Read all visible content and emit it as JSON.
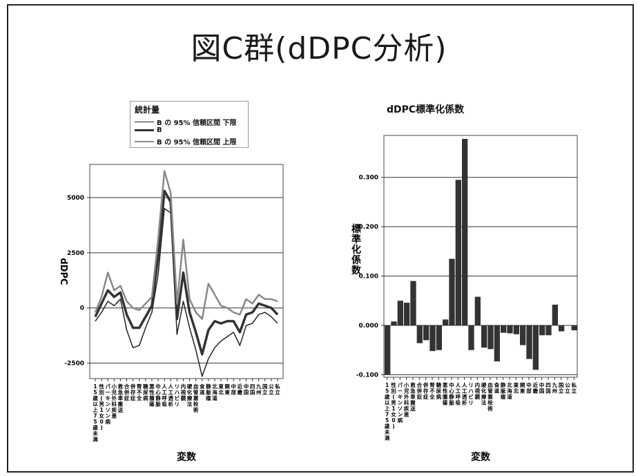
{
  "slide": {
    "title": "図C群(dDPC分析)"
  },
  "chart_data": [
    {
      "type": "line",
      "title": "",
      "xlabel": "変数",
      "ylabel": "dDPC",
      "legend_title": "統計量",
      "legend_position": "top-left",
      "grid": true,
      "ylim": [
        -3200,
        6500
      ],
      "yticks": [
        5000,
        2500,
        0,
        -2500
      ],
      "ytick_labels": [
        "5000",
        "2500",
        "0",
        "-2500"
      ],
      "categories": [
        "15歳以上75歳未満",
        "性別(男1女0)",
        "パーキンソン病",
        "小児外科疾患",
        "救急車搬送",
        "合併症",
        "併存症",
        "腎不全",
        "糖尿病",
        "悪性腫瘍",
        "中心静脈",
        "人工呼吸",
        "人工透析",
        "リハビリ",
        "内視鏡",
        "硬化療法",
        "血管塞栓術",
        "食道",
        "静脈瘤",
        "北海道",
        "東北",
        "関東",
        "中部",
        "近畿",
        "中国",
        "四国",
        "九州",
        "国立",
        "公立",
        "私立"
      ],
      "series": [
        {
          "name": "B の 95% 信頼区間 下限",
          "color": "#222222",
          "values": [
            -600,
            -200,
            300,
            100,
            400,
            -1000,
            -1800,
            -1700,
            -900,
            -200,
            1500,
            4500,
            4300,
            -1200,
            300,
            -900,
            -1900,
            -3100,
            -2300,
            -1800,
            -1500,
            -1300,
            -1100,
            -1700,
            -800,
            -700,
            -300,
            -200,
            -400,
            -700
          ]
        },
        {
          "name": "B",
          "color": "#333333",
          "values": [
            -400,
            200,
            800,
            500,
            700,
            -300,
            -900,
            -900,
            -400,
            100,
            2300,
            5300,
            4800,
            -500,
            1600,
            -200,
            -1100,
            -2100,
            -1000,
            -600,
            -700,
            -600,
            -600,
            -1100,
            -300,
            -200,
            200,
            100,
            0,
            -300
          ]
        },
        {
          "name": "B の 95% 信頼区間 上限",
          "color": "#888888",
          "values": [
            -200,
            500,
            1600,
            800,
            1000,
            300,
            0,
            -100,
            200,
            500,
            3100,
            6200,
            5200,
            200,
            3100,
            400,
            -200,
            -500,
            1100,
            600,
            100,
            0,
            -200,
            -300,
            400,
            200,
            600,
            400,
            400,
            300
          ]
        }
      ]
    },
    {
      "type": "bar",
      "title": "dDPC標準化係数",
      "xlabel": "変数",
      "ylabel": "標準化係数",
      "grid": true,
      "ylim": [
        -0.105,
        0.385
      ],
      "yticks": [
        0.3,
        0.2,
        0.1,
        0.0,
        -0.1
      ],
      "ytick_labels": [
        "0.300",
        "0.200",
        "0.100",
        "0.000",
        "-0.100"
      ],
      "categories": [
        "15歳以上75歳未満",
        "性別(男1女0)",
        "パーキンソン病",
        "小児外科疾患",
        "救急車搬送",
        "合併症",
        "併存症",
        "腎不全",
        "糖尿病",
        "悪性腫瘍",
        "中心静脈",
        "人工呼吸",
        "人工透析",
        "リハビリ",
        "内視鏡",
        "硬化療法",
        "血管塞栓術",
        "食道",
        "静脈瘤",
        "北海道",
        "東北",
        "関東",
        "中部",
        "近畿",
        "中国",
        "四国",
        "九州",
        "国立",
        "公立",
        "私立"
      ],
      "values": [
        -0.1,
        0.008,
        0.05,
        0.046,
        0.09,
        -0.036,
        -0.03,
        -0.052,
        -0.05,
        0.012,
        0.135,
        0.295,
        0.378,
        -0.05,
        0.058,
        -0.045,
        -0.048,
        -0.073,
        -0.015,
        -0.016,
        -0.018,
        -0.04,
        -0.068,
        -0.09,
        -0.02,
        -0.02,
        0.042,
        -0.012,
        0.0,
        -0.01
      ],
      "bar_color": "#333333"
    }
  ]
}
